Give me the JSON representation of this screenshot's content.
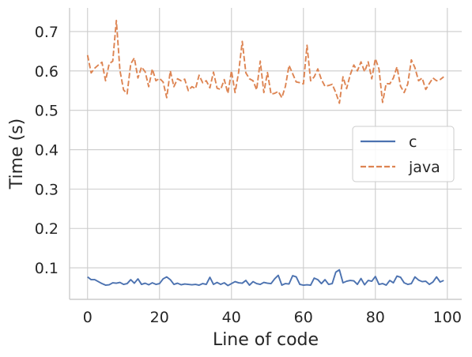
{
  "chart_data": {
    "type": "line",
    "xlabel": "Line of code",
    "ylabel": "Time (s)",
    "xlim": [
      -5,
      104
    ],
    "ylim": [
      0.02,
      0.76
    ],
    "x_ticks": [
      0,
      20,
      40,
      60,
      80,
      100
    ],
    "x_tick_labels": [
      "0",
      "20",
      "40",
      "60",
      "80",
      "100"
    ],
    "y_ticks": [
      0.1,
      0.2,
      0.3,
      0.4,
      0.5,
      0.6,
      0.7
    ],
    "y_tick_labels": [
      "0.1",
      "0.2",
      "0.3",
      "0.4",
      "0.5",
      "0.6",
      "0.7"
    ],
    "grid": true,
    "legend_position": "right",
    "series": [
      {
        "name": "c",
        "color": "#4c72b0",
        "dash": "solid",
        "values": [
          0.077,
          0.07,
          0.07,
          0.065,
          0.06,
          0.056,
          0.057,
          0.062,
          0.061,
          0.063,
          0.058,
          0.06,
          0.07,
          0.061,
          0.072,
          0.058,
          0.061,
          0.057,
          0.062,
          0.058,
          0.06,
          0.072,
          0.077,
          0.07,
          0.058,
          0.061,
          0.057,
          0.059,
          0.058,
          0.057,
          0.058,
          0.056,
          0.06,
          0.058,
          0.076,
          0.058,
          0.063,
          0.058,
          0.062,
          0.055,
          0.06,
          0.065,
          0.062,
          0.061,
          0.068,
          0.056,
          0.065,
          0.06,
          0.058,
          0.063,
          0.061,
          0.06,
          0.072,
          0.081,
          0.056,
          0.06,
          0.059,
          0.08,
          0.077,
          0.058,
          0.056,
          0.057,
          0.056,
          0.074,
          0.07,
          0.06,
          0.07,
          0.058,
          0.06,
          0.089,
          0.095,
          0.062,
          0.066,
          0.068,
          0.067,
          0.058,
          0.073,
          0.057,
          0.068,
          0.066,
          0.078,
          0.058,
          0.06,
          0.056,
          0.068,
          0.062,
          0.079,
          0.076,
          0.062,
          0.058,
          0.06,
          0.077,
          0.069,
          0.065,
          0.066,
          0.058,
          0.064,
          0.077,
          0.064,
          0.068
        ]
      },
      {
        "name": "java",
        "color": "#dd8452",
        "dash": "dashed",
        "values": [
          0.64,
          0.595,
          0.607,
          0.615,
          0.622,
          0.575,
          0.618,
          0.625,
          0.728,
          0.601,
          0.552,
          0.542,
          0.618,
          0.633,
          0.582,
          0.61,
          0.598,
          0.56,
          0.605,
          0.575,
          0.581,
          0.572,
          0.532,
          0.6,
          0.56,
          0.58,
          0.575,
          0.579,
          0.55,
          0.56,
          0.555,
          0.589,
          0.57,
          0.575,
          0.557,
          0.597,
          0.556,
          0.553,
          0.578,
          0.543,
          0.6,
          0.545,
          0.597,
          0.675,
          0.595,
          0.58,
          0.575,
          0.552,
          0.625,
          0.545,
          0.596,
          0.541,
          0.543,
          0.548,
          0.532,
          0.561,
          0.614,
          0.593,
          0.572,
          0.57,
          0.567,
          0.665,
          0.575,
          0.585,
          0.605,
          0.578,
          0.561,
          0.563,
          0.566,
          0.545,
          0.518,
          0.585,
          0.555,
          0.59,
          0.615,
          0.6,
          0.623,
          0.598,
          0.623,
          0.58,
          0.631,
          0.605,
          0.52,
          0.568,
          0.567,
          0.582,
          0.61,
          0.561,
          0.545,
          0.567,
          0.628,
          0.608,
          0.575,
          0.582,
          0.553,
          0.568,
          0.582,
          0.575,
          0.578,
          0.585
        ]
      }
    ]
  }
}
